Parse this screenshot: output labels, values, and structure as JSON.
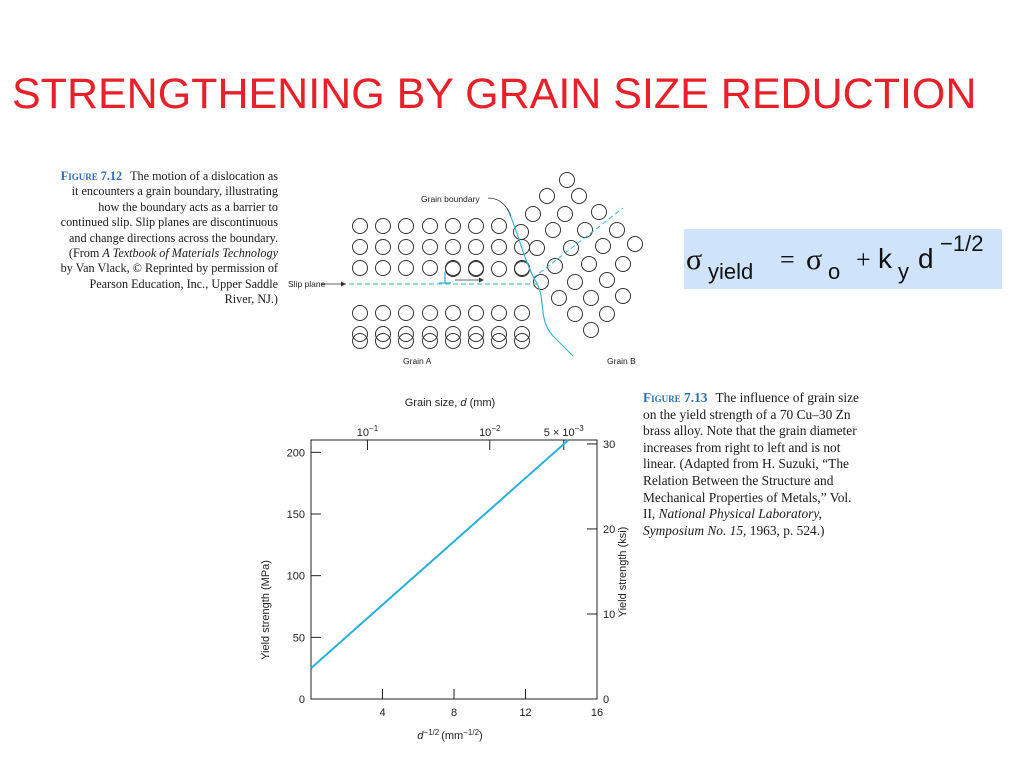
{
  "slide": {
    "title": "STRENGTHENING BY GRAIN SIZE REDUCTION",
    "title_color": "#e8202a"
  },
  "figure_7_12": {
    "label": "Figure 7.12",
    "caption_line1": "The motion of a dislocation as",
    "caption_line2": "it encounters a grain boundary, illustrating",
    "caption_line3": "how the boundary acts as a barrier to",
    "caption_line4": "continued slip. Slip planes are discontinuous",
    "caption_line5": "and change directions across the boundary.",
    "caption_line6_pre": "(From ",
    "caption_line6_italic": "A Textbook of Materials Technology",
    "caption_line7": "by Van Vlack, © Reprinted by permission of",
    "caption_line8": "Pearson Education, Inc., Upper Saddle",
    "caption_line9": "River, NJ.)",
    "diagram": {
      "grain_boundary_label": "Grain boundary",
      "slip_plane_label": "Slip plane",
      "grain_a_label": "Grain A",
      "grain_b_label": "Grain B",
      "accent_color": "#3bb3d3"
    }
  },
  "equation": {
    "sigma": "σ",
    "sub_yield": "yield",
    "equals": "=",
    "sigma2": "σ",
    "sub_o": "o",
    "plus": "+",
    "k": "k",
    "sub_y": "y",
    "d": "d",
    "exponent": "−1/2",
    "background": "#cfe3fb"
  },
  "figure_7_13": {
    "label": "Figure 7.13",
    "caption_part1": "The influence of grain size on the yield strength of a 70 Cu–30 Zn brass alloy. Note that the grain diameter increases from right to left and is not linear. (Adapted from H. Suzuki, “The Relation Between the Structure and Mechanical Properties of Metals,” Vol. II, ",
    "caption_italic": "National Physical Laboratory, Symposium No. 15,",
    "caption_part2": " 1963, p. 524.)"
  },
  "chart_data": {
    "type": "line",
    "title": "",
    "xlabel": "d^−1/2 (mm^−1/2)",
    "xlabel_main": "d",
    "xlabel_exp": "−1/2",
    "xlabel_unit": "(mm",
    "xlabel_unit_exp": "−1/2",
    "xlabel_close": ")",
    "ylabel": "Yield strength (MPa)",
    "y2label": "Yield strength (ksi)",
    "top_axis_label": "Grain size, d (mm)",
    "top_axis_label_main": "Grain size, ",
    "top_axis_label_var": "d",
    "top_axis_label_unit": " (mm)",
    "xlim": [
      0,
      16
    ],
    "ylim": [
      0,
      210
    ],
    "x_ticks": [
      4,
      8,
      12,
      16
    ],
    "y_ticks": [
      0,
      50,
      100,
      150,
      200
    ],
    "y2_ticks": [
      {
        "label": "0",
        "mpa": 0
      },
      {
        "label": "10",
        "mpa": 68.9
      },
      {
        "label": "20",
        "mpa": 137.9
      },
      {
        "label": "30",
        "mpa": 206.8
      }
    ],
    "top_ticks": [
      {
        "base": "10",
        "exp": "−1",
        "x": 3.16
      },
      {
        "base": "10",
        "exp": "−2",
        "x": 10
      },
      {
        "base": "5 × 10",
        "exp": "−3",
        "x": 14.14
      }
    ],
    "series": [
      {
        "x": [
          0,
          14.4
        ],
        "y": [
          25,
          210
        ],
        "color": "#2bb0d9"
      }
    ],
    "grid": false
  }
}
